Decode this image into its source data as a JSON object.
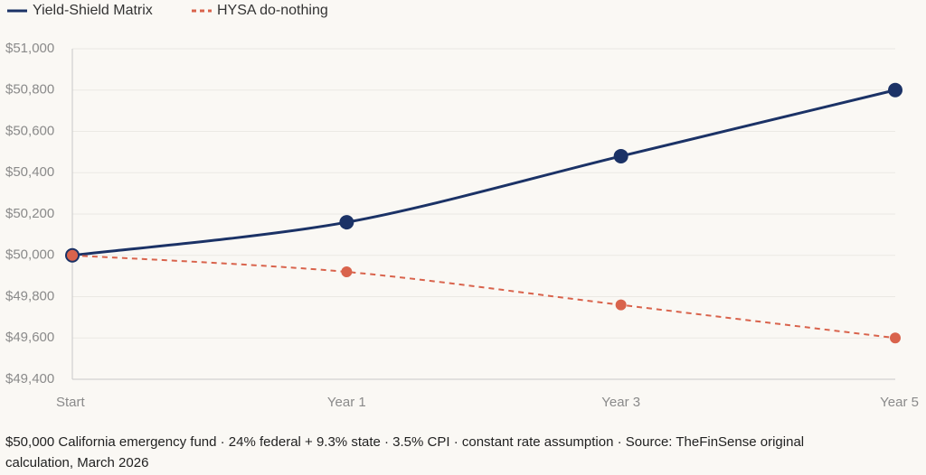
{
  "chart_data": {
    "type": "line",
    "categories": [
      "Start",
      "Year 1",
      "Year 3",
      "Year 5"
    ],
    "series": [
      {
        "name": "Yield-Shield Matrix",
        "color": "#1b3266",
        "values": [
          50000,
          50160,
          50480,
          50800
        ]
      },
      {
        "name": "HYSA do-nothing",
        "color": "#d9634c",
        "values": [
          50000,
          49920,
          49760,
          49600
        ]
      }
    ],
    "ylim": [
      49400,
      51000
    ],
    "yticks": [
      {
        "value": 49400,
        "label": "$49,400"
      },
      {
        "value": 49600,
        "label": "$49,600"
      },
      {
        "value": 49800,
        "label": "$49,800"
      },
      {
        "value": 50000,
        "label": "$50,000"
      },
      {
        "value": 50200,
        "label": "$50,200"
      },
      {
        "value": 50400,
        "label": "$50,400"
      },
      {
        "value": 50600,
        "label": "$50,600"
      },
      {
        "value": 50800,
        "label": "$50,800"
      },
      {
        "value": 51000,
        "label": "$51,000"
      }
    ],
    "grid": true,
    "caption": "$50,000 California emergency fund · 24% federal + 9.3% state · 3.5% CPI · constant rate assumption · Source: TheFinSense original calculation, March 2026"
  }
}
